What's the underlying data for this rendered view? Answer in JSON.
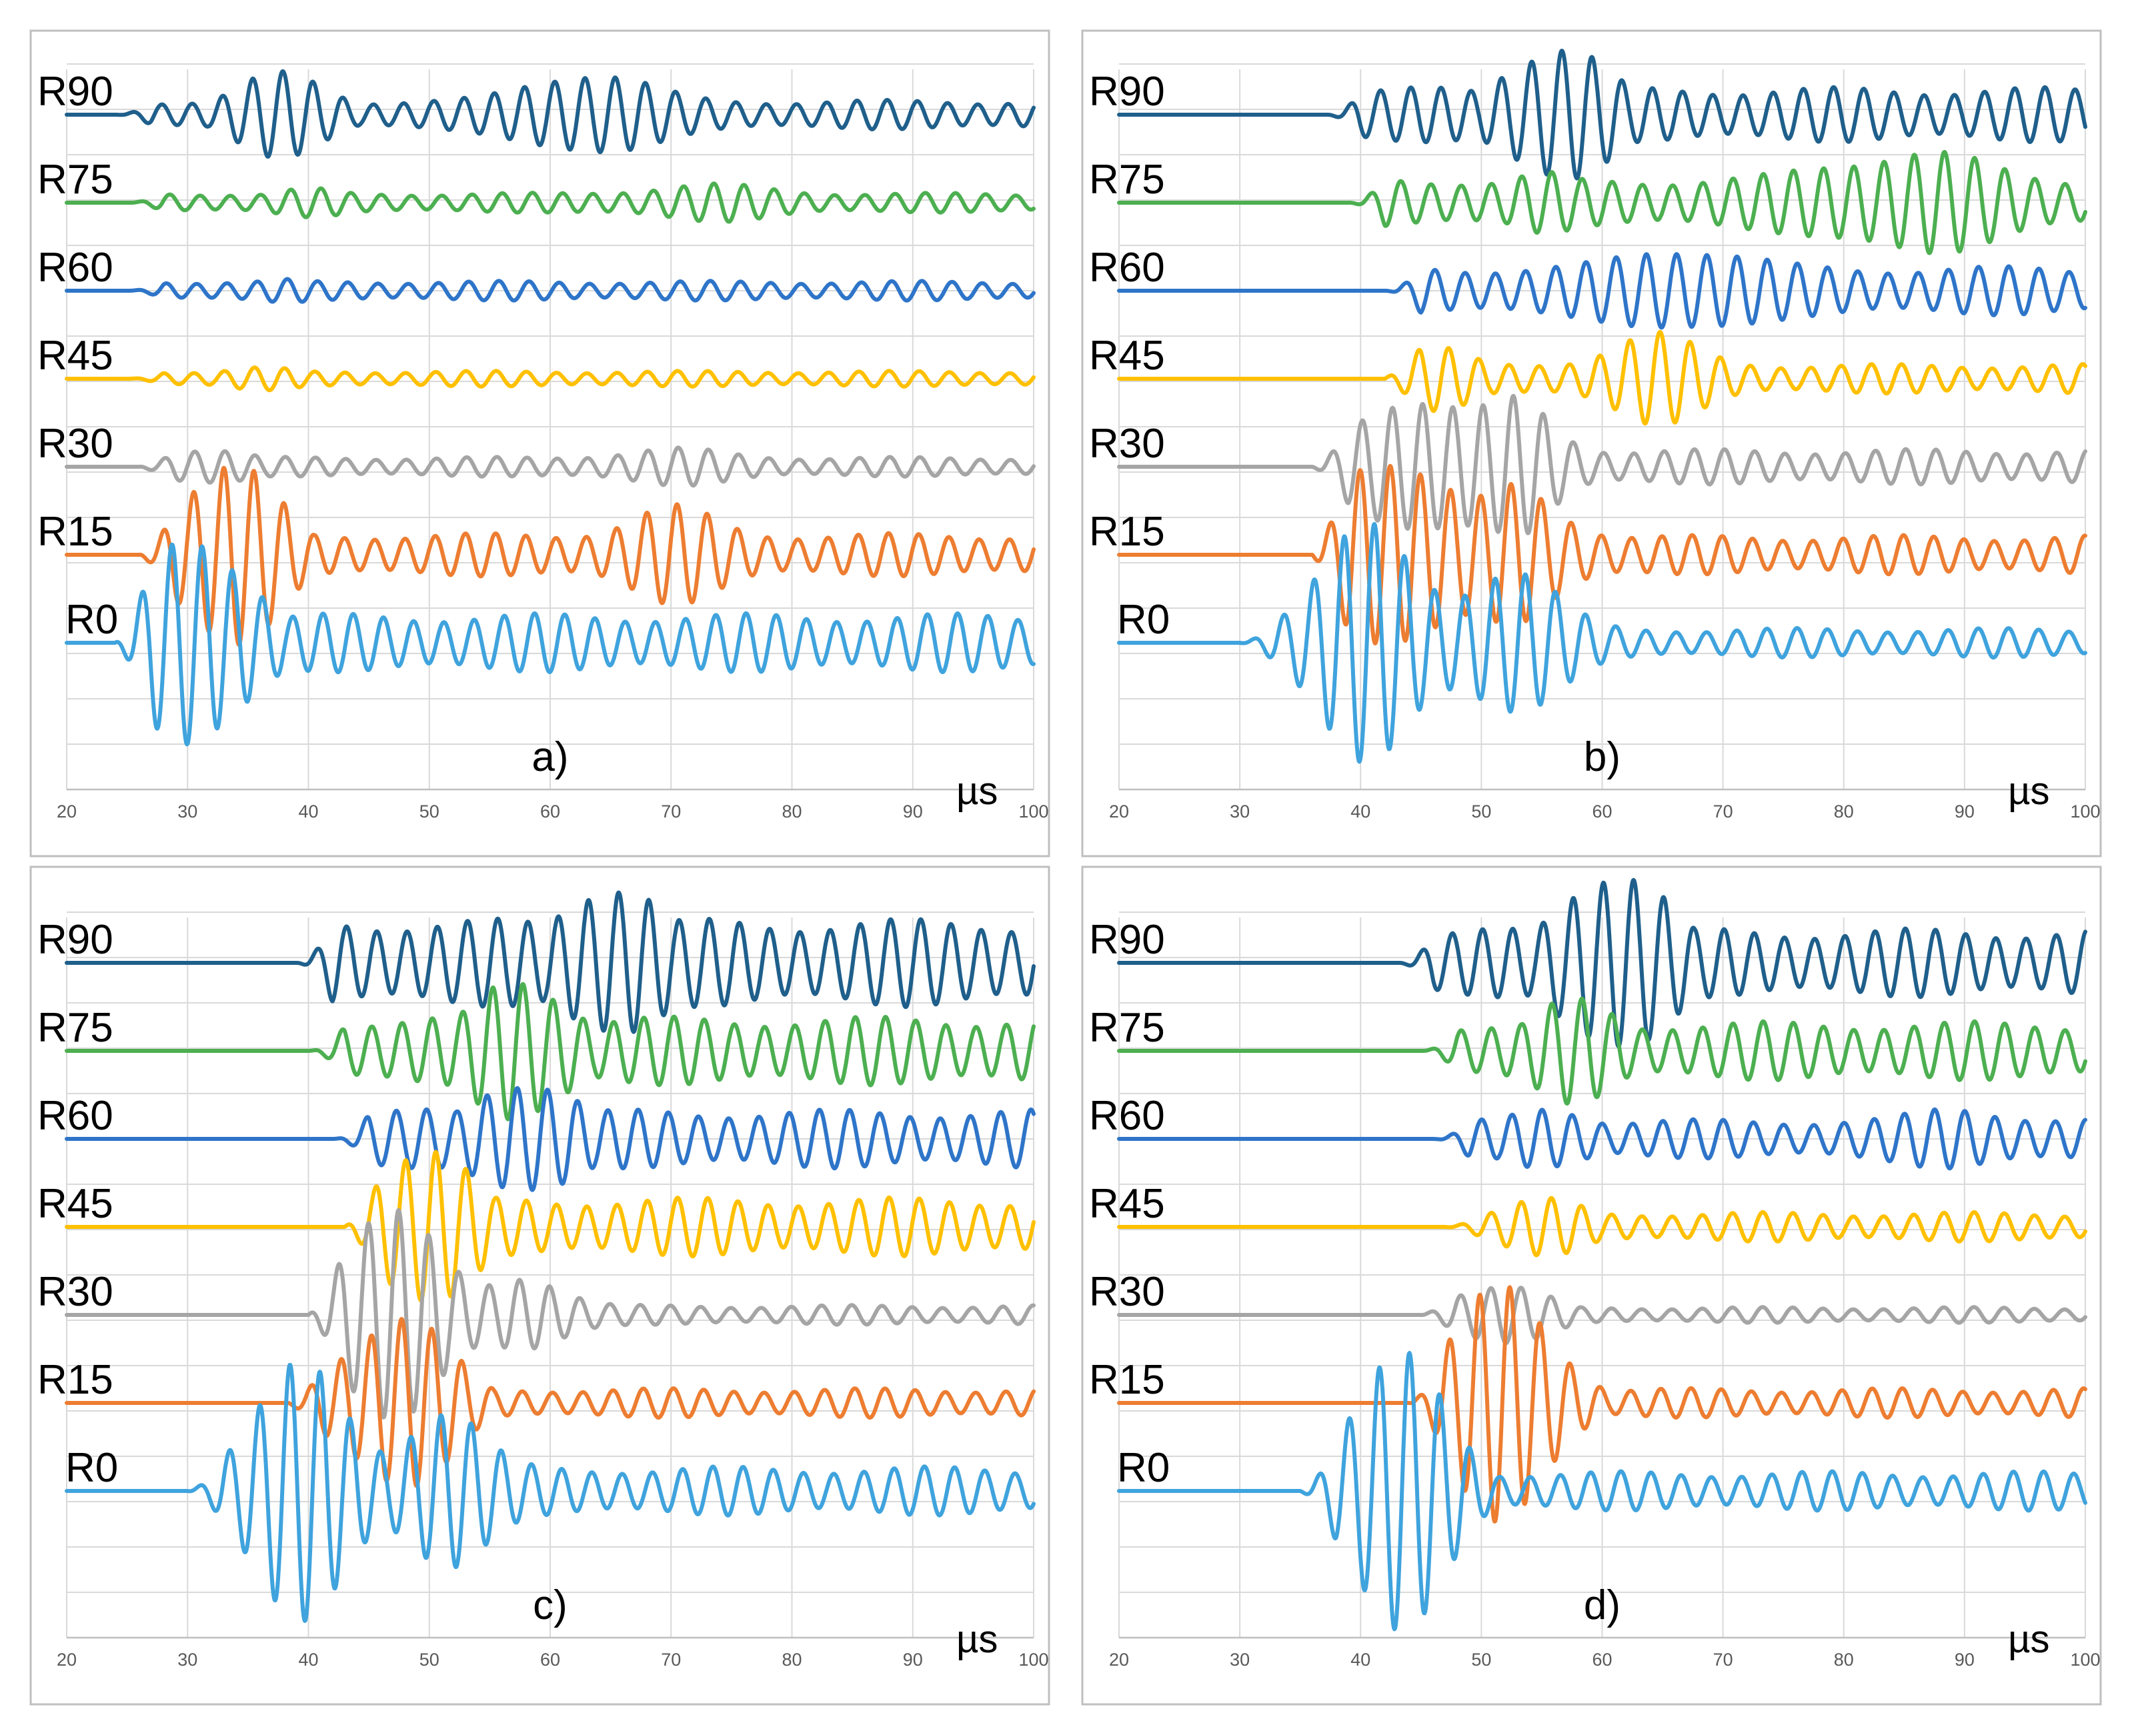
{
  "figure": {
    "x_unit": "µs"
  },
  "colors": {
    "R90": "#1f5f8b",
    "R75": "#4caf50",
    "R60": "#2e75c9",
    "R45": "#ffc000",
    "R30": "#a5a5a5",
    "R15": "#ed7d31",
    "R0": "#3fa3dd"
  },
  "chart_data": [
    {
      "type": "line",
      "panel_label": "a)",
      "xlabel": "µs",
      "x_ticks": [
        20,
        30,
        40,
        50,
        60,
        70,
        80,
        90,
        100
      ],
      "xlim": [
        20,
        100
      ],
      "grid": true,
      "series": [
        {
          "name": "R90",
          "onset_us": 24,
          "peak_us": 38,
          "amplitude": 0.45,
          "coda_amplitude": 0.15,
          "period_us": 2.5,
          "late_packets": [
            {
              "center_us": 63,
              "amplitude": 0.38,
              "width_us": 6
            }
          ]
        },
        {
          "name": "R75",
          "onset_us": 25,
          "peak_us": 40,
          "amplitude": 0.15,
          "coda_amplitude": 0.1,
          "period_us": 2.5,
          "late_packets": [
            {
              "center_us": 73,
              "amplitude": 0.1,
              "width_us": 7
            }
          ]
        },
        {
          "name": "R60",
          "onset_us": 25,
          "peak_us": 38,
          "amplitude": 0.12,
          "coda_amplitude": 0.1,
          "period_us": 2.5,
          "late_packets": []
        },
        {
          "name": "R45",
          "onset_us": 25,
          "peak_us": 36,
          "amplitude": 0.12,
          "coda_amplitude": 0.08,
          "period_us": 2.5,
          "late_packets": []
        },
        {
          "name": "R30",
          "onset_us": 26,
          "peak_us": 31,
          "amplitude": 0.22,
          "coda_amplitude": 0.1,
          "period_us": 2.5,
          "late_packets": [
            {
              "center_us": 70,
              "amplitude": 0.1,
              "width_us": 6
            }
          ]
        },
        {
          "name": "R15",
          "onset_us": 26,
          "peak_us": 33,
          "amplitude": 1.05,
          "coda_amplitude": 0.22,
          "period_us": 2.5,
          "late_packets": [
            {
              "center_us": 70,
              "amplitude": 0.3,
              "width_us": 5
            }
          ]
        },
        {
          "name": "R0",
          "onset_us": 24,
          "peak_us": 31,
          "amplitude": 1.3,
          "coda_amplitude": 0.3,
          "period_us": 2.5,
          "late_packets": []
        }
      ]
    },
    {
      "type": "line",
      "panel_label": "b)",
      "xlabel": "µs",
      "x_ticks": [
        20,
        30,
        40,
        50,
        60,
        70,
        80,
        90,
        100
      ],
      "xlim": [
        20,
        100
      ],
      "grid": true,
      "series": [
        {
          "name": "R90",
          "onset_us": 37,
          "peak_us": 56,
          "amplitude": 0.85,
          "coda_amplitude": 0.28,
          "period_us": 2.5,
          "late_packets": []
        },
        {
          "name": "R75",
          "onset_us": 39,
          "peak_us": 55,
          "amplitude": 0.32,
          "coda_amplitude": 0.25,
          "period_us": 2.5,
          "late_packets": [
            {
              "center_us": 85,
              "amplitude": 0.35,
              "width_us": 8
            }
          ]
        },
        {
          "name": "R60",
          "onset_us": 42,
          "peak_us": 55,
          "amplitude": 0.2,
          "coda_amplitude": 0.25,
          "period_us": 2.5,
          "late_packets": [
            {
              "center_us": 67,
              "amplitude": 0.28,
              "width_us": 6
            }
          ]
        },
        {
          "name": "R45",
          "onset_us": 42,
          "peak_us": 45,
          "amplitude": 0.38,
          "coda_amplitude": 0.15,
          "period_us": 2.5,
          "late_packets": [
            {
              "center_us": 64,
              "amplitude": 0.35,
              "width_us": 5
            }
          ]
        },
        {
          "name": "R30",
          "onset_us": 36,
          "peak_us": 44,
          "amplitude": 0.9,
          "coda_amplitude": 0.18,
          "period_us": 2.5,
          "late_packets": [
            {
              "center_us": 53,
              "amplitude": 0.55,
              "width_us": 4
            }
          ]
        },
        {
          "name": "R15",
          "onset_us": 36,
          "peak_us": 42,
          "amplitude": 1.3,
          "coda_amplitude": 0.2,
          "period_us": 2.5,
          "late_packets": [
            {
              "center_us": 53,
              "amplitude": 0.55,
              "width_us": 5
            }
          ]
        },
        {
          "name": "R0",
          "onset_us": 30,
          "peak_us": 40,
          "amplitude": 1.25,
          "coda_amplitude": 0.15,
          "period_us": 2.5,
          "late_packets": [
            {
              "center_us": 52,
              "amplitude": 0.8,
              "width_us": 5
            }
          ]
        }
      ]
    },
    {
      "type": "line",
      "panel_label": "c)",
      "xlabel": "µs",
      "x_ticks": [
        20,
        30,
        40,
        50,
        60,
        70,
        80,
        90,
        100
      ],
      "xlim": [
        20,
        100
      ],
      "grid": true,
      "series": [
        {
          "name": "R90",
          "onset_us": 39,
          "peak_us": 65,
          "amplitude": 1.0,
          "coda_amplitude": 0.45,
          "period_us": 2.5,
          "late_packets": []
        },
        {
          "name": "R75",
          "onset_us": 40,
          "peak_us": 58,
          "amplitude": 0.85,
          "coda_amplitude": 0.35,
          "period_us": 2.5,
          "late_packets": []
        },
        {
          "name": "R60",
          "onset_us": 42,
          "peak_us": 58,
          "amplitude": 0.75,
          "coda_amplitude": 0.3,
          "period_us": 2.5,
          "late_packets": []
        },
        {
          "name": "R45",
          "onset_us": 43,
          "peak_us": 49,
          "amplitude": 0.95,
          "coda_amplitude": 0.3,
          "period_us": 2.5,
          "late_packets": []
        },
        {
          "name": "R30",
          "onset_us": 40,
          "peak_us": 46,
          "amplitude": 1.25,
          "coda_amplitude": 0.1,
          "period_us": 2.5,
          "late_packets": [
            {
              "center_us": 58,
              "amplitude": 0.4,
              "width_us": 4
            }
          ]
        },
        {
          "name": "R15",
          "onset_us": 38,
          "peak_us": 47,
          "amplitude": 1.05,
          "coda_amplitude": 0.15,
          "period_us": 2.5,
          "late_packets": []
        },
        {
          "name": "R0",
          "onset_us": 30,
          "peak_us": 39,
          "amplitude": 1.35,
          "coda_amplitude": 0.25,
          "period_us": 2.5,
          "late_packets": [
            {
              "center_us": 51,
              "amplitude": 0.8,
              "width_us": 4
            }
          ]
        }
      ]
    },
    {
      "type": "line",
      "panel_label": "d)",
      "xlabel": "µs",
      "x_ticks": [
        20,
        30,
        40,
        50,
        60,
        70,
        80,
        90,
        100
      ],
      "xlim": [
        20,
        100
      ],
      "grid": true,
      "series": [
        {
          "name": "R90",
          "onset_us": 43,
          "peak_us": 61,
          "amplitude": 1.2,
          "coda_amplitude": 0.35,
          "period_us": 2.5,
          "late_packets": []
        },
        {
          "name": "R75",
          "onset_us": 45,
          "peak_us": 58,
          "amplitude": 0.55,
          "coda_amplitude": 0.3,
          "period_us": 2.5,
          "late_packets": []
        },
        {
          "name": "R60",
          "onset_us": 46,
          "peak_us": 56,
          "amplitude": 0.35,
          "coda_amplitude": 0.2,
          "period_us": 2.5,
          "late_packets": [
            {
              "center_us": 90,
              "amplitude": 0.15,
              "width_us": 5
            }
          ]
        },
        {
          "name": "R45",
          "onset_us": 47,
          "peak_us": 55,
          "amplitude": 0.3,
          "coda_amplitude": 0.15,
          "period_us": 2.5,
          "late_packets": []
        },
        {
          "name": "R30",
          "onset_us": 45,
          "peak_us": 51,
          "amplitude": 0.35,
          "coda_amplitude": 0.08,
          "period_us": 2.5,
          "late_packets": []
        },
        {
          "name": "R15",
          "onset_us": 44,
          "peak_us": 52,
          "amplitude": 1.25,
          "coda_amplitude": 0.15,
          "period_us": 2.5,
          "late_packets": []
        },
        {
          "name": "R0",
          "onset_us": 35,
          "peak_us": 43,
          "amplitude": 1.45,
          "coda_amplitude": 0.2,
          "period_us": 2.5,
          "late_packets": []
        }
      ]
    }
  ]
}
